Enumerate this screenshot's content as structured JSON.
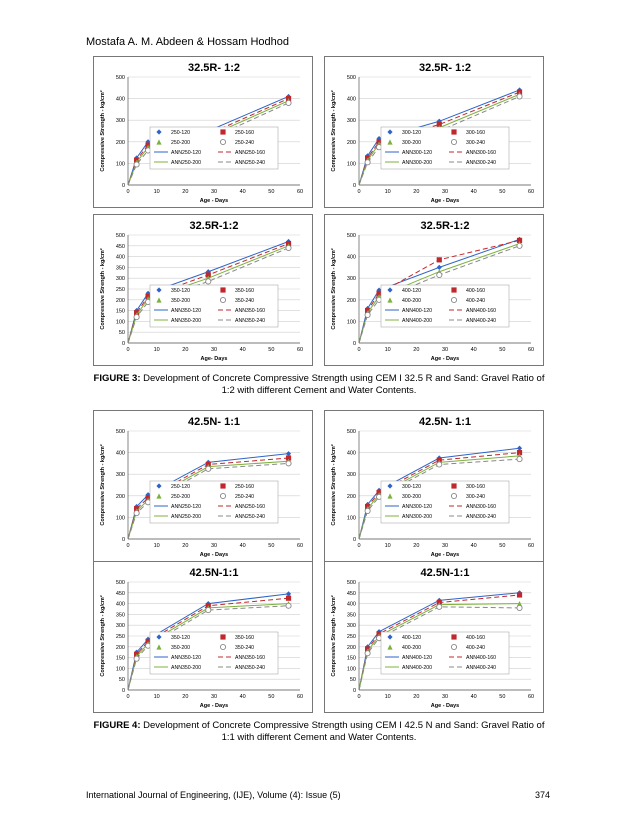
{
  "header": "Mostafa A. M. Abdeen & Hossam Hodhod",
  "caption3": {
    "label": "FIGURE 3:",
    "text": " Development of Concrete Compressive Strength using CEM I 32.5 R and Sand: Gravel Ratio of 1:2 with different Cement and Water Contents."
  },
  "caption4": {
    "label": "FIGURE 4:",
    "text": " Development of Concrete Compressive Strength using CEM I 42.5 N and Sand: Gravel Ratio of 1:1 with different Cement and Water Contents."
  },
  "footer": "International Journal of Engineering, (IJE), Volume (4): Issue (5)",
  "page_number": "374",
  "colors": {
    "blue": "#2e64c8",
    "red": "#c0282d",
    "green": "#7cb23c",
    "gray": "#888888"
  },
  "chart_data": [
    {
      "type": "line",
      "title": "32.5R- 1:2",
      "xlabel": "Age - Days",
      "ylabel": "Compressive Strength - kg/cm²",
      "xlim": [
        0,
        60
      ],
      "ylim": [
        0,
        500
      ],
      "xticks": [
        0,
        10,
        20,
        30,
        40,
        50,
        60
      ],
      "yticks": [
        0,
        100,
        200,
        300,
        400,
        500
      ],
      "legend": [
        "250-120",
        "250-160",
        "250-200",
        "250-240",
        "ANN250-120",
        "ANN250-160",
        "ANN250-200",
        "ANN250-240"
      ],
      "x": [
        0,
        3,
        7,
        28,
        56
      ],
      "series": [
        {
          "name": "250-120",
          "values": [
            0,
            125,
            200,
            250,
            410
          ]
        },
        {
          "name": "250-160",
          "values": [
            0,
            115,
            185,
            235,
            400
          ]
        },
        {
          "name": "250-200",
          "values": [
            0,
            105,
            175,
            225,
            390
          ]
        },
        {
          "name": "250-240",
          "values": [
            0,
            95,
            160,
            210,
            380
          ]
        }
      ]
    },
    {
      "type": "line",
      "title": "32.5R- 1:2",
      "xlabel": "Age - Days",
      "ylabel": "Compressive Strength - kg/cm²",
      "xlim": [
        0,
        60
      ],
      "ylim": [
        0,
        500
      ],
      "xticks": [
        0,
        10,
        20,
        30,
        40,
        50,
        60
      ],
      "yticks": [
        0,
        100,
        200,
        300,
        400,
        500
      ],
      "legend": [
        "300-120",
        "300-160",
        "300-200",
        "300-240",
        "ANN300-120",
        "ANN300-160",
        "ANN300-200",
        "ANN300-240"
      ],
      "x": [
        0,
        3,
        7,
        28,
        56
      ],
      "series": [
        {
          "name": "300-120",
          "values": [
            0,
            135,
            215,
            295,
            440
          ]
        },
        {
          "name": "300-160",
          "values": [
            0,
            125,
            200,
            280,
            430
          ]
        },
        {
          "name": "300-200",
          "values": [
            0,
            115,
            190,
            265,
            420
          ]
        },
        {
          "name": "300-240",
          "values": [
            0,
            105,
            175,
            250,
            410
          ]
        }
      ]
    },
    {
      "type": "line",
      "title": "32.5R-1:2",
      "xlabel": "Age- Days",
      "ylabel": "Compressive Strength - kg/cm²",
      "xlim": [
        0,
        60
      ],
      "ylim": [
        0,
        500
      ],
      "xticks": [
        0,
        10,
        20,
        30,
        40,
        50,
        60
      ],
      "yticks": [
        0,
        50,
        100,
        150,
        200,
        250,
        300,
        350,
        400,
        450,
        500
      ],
      "legend": [
        "350-120",
        "350-160",
        "350-200",
        "350-240",
        "ANN350-120",
        "ANN350-160",
        "ANN350-200",
        "ANN350-240"
      ],
      "x": [
        0,
        3,
        7,
        28,
        56
      ],
      "series": [
        {
          "name": "350-120",
          "values": [
            0,
            150,
            230,
            330,
            470
          ]
        },
        {
          "name": "350-160",
          "values": [
            0,
            140,
            215,
            315,
            460
          ]
        },
        {
          "name": "350-200",
          "values": [
            0,
            130,
            205,
            300,
            450
          ]
        },
        {
          "name": "350-240",
          "values": [
            0,
            120,
            190,
            285,
            440
          ]
        }
      ]
    },
    {
      "type": "line",
      "title": "32.5R-1:2",
      "xlabel": "Age - Days",
      "ylabel": "Compressive Strength - kg/cm²",
      "xlim": [
        0,
        60
      ],
      "ylim": [
        0,
        500
      ],
      "xticks": [
        0,
        10,
        20,
        30,
        40,
        50,
        60
      ],
      "yticks": [
        0,
        100,
        200,
        300,
        400,
        500
      ],
      "legend": [
        "400-120",
        "400-160",
        "400-200",
        "400-240",
        "ANN400-120",
        "ANN400-160",
        "ANN400-200",
        "ANN400-240"
      ],
      "x": [
        0,
        3,
        7,
        28,
        56
      ],
      "series": [
        {
          "name": "400-120",
          "values": [
            0,
            160,
            245,
            350,
            480
          ]
        },
        {
          "name": "400-160",
          "values": [
            0,
            150,
            230,
            385,
            475
          ]
        },
        {
          "name": "400-200",
          "values": [
            0,
            140,
            215,
            330,
            460
          ]
        },
        {
          "name": "400-240",
          "values": [
            0,
            130,
            200,
            315,
            450
          ]
        }
      ]
    },
    {
      "type": "line",
      "title": "42.5N- 1:1",
      "xlabel": "Age - Days",
      "ylabel": "Compressive Strength - kg/cm²",
      "xlim": [
        0,
        60
      ],
      "ylim": [
        0,
        500
      ],
      "xticks": [
        0,
        10,
        20,
        30,
        40,
        50,
        60
      ],
      "yticks": [
        0,
        100,
        200,
        300,
        400,
        500
      ],
      "legend": [
        "250-120",
        "250-160",
        "250-200",
        "250-240",
        "ANN250-120",
        "ANN250-160",
        "ANN250-200",
        "ANN250-240"
      ],
      "x": [
        0,
        3,
        7,
        28,
        56
      ],
      "series": [
        {
          "name": "250-120",
          "values": [
            0,
            150,
            205,
            355,
            395
          ]
        },
        {
          "name": "250-160",
          "values": [
            0,
            140,
            190,
            345,
            375
          ]
        },
        {
          "name": "250-200",
          "values": [
            0,
            130,
            180,
            335,
            360
          ]
        },
        {
          "name": "250-240",
          "values": [
            0,
            120,
            170,
            325,
            350
          ]
        }
      ]
    },
    {
      "type": "line",
      "title": "42.5N- 1:1",
      "xlabel": "Age - Days",
      "ylabel": "Compressive Strength - kg/cm²",
      "xlim": [
        0,
        60
      ],
      "ylim": [
        0,
        500
      ],
      "xticks": [
        0,
        10,
        20,
        30,
        40,
        50,
        60
      ],
      "yticks": [
        0,
        100,
        200,
        300,
        400,
        500
      ],
      "legend": [
        "300-120",
        "300-160",
        "300-200",
        "300-240",
        "ANN300-120",
        "ANN300-160",
        "ANN300-200",
        "ANN300-240"
      ],
      "x": [
        0,
        3,
        7,
        28,
        56
      ],
      "series": [
        {
          "name": "300-120",
          "values": [
            0,
            160,
            225,
            375,
            420
          ]
        },
        {
          "name": "300-160",
          "values": [
            0,
            150,
            215,
            365,
            400
          ]
        },
        {
          "name": "300-200",
          "values": [
            0,
            140,
            205,
            355,
            385
          ]
        },
        {
          "name": "300-240",
          "values": [
            0,
            130,
            195,
            345,
            370
          ]
        }
      ]
    },
    {
      "type": "line",
      "title": "42.5N-1:1",
      "xlabel": "Age - Days",
      "ylabel": "Compressive Strength - kg/cm²",
      "xlim": [
        0,
        60
      ],
      "ylim": [
        0,
        500
      ],
      "xticks": [
        0,
        10,
        20,
        30,
        40,
        50,
        60
      ],
      "yticks": [
        0,
        50,
        100,
        150,
        200,
        250,
        300,
        350,
        400,
        450,
        500
      ],
      "legend": [
        "350-120",
        "350-160",
        "350-200",
        "350-240",
        "ANN350-120",
        "ANN350-160",
        "ANN350-200",
        "ANN350-240"
      ],
      "x": [
        0,
        3,
        7,
        28,
        56
      ],
      "series": [
        {
          "name": "350-120",
          "values": [
            0,
            175,
            235,
            400,
            445
          ]
        },
        {
          "name": "350-160",
          "values": [
            0,
            165,
            225,
            390,
            425
          ]
        },
        {
          "name": "350-200",
          "values": [
            0,
            155,
            215,
            380,
            400
          ]
        },
        {
          "name": "350-240",
          "values": [
            0,
            145,
            205,
            370,
            390
          ]
        }
      ]
    },
    {
      "type": "line",
      "title": "42.5N-1:1",
      "xlabel": "Age - Days",
      "ylabel": "Compressive Strength - kg/cm²",
      "xlim": [
        0,
        60
      ],
      "ylim": [
        0,
        500
      ],
      "xticks": [
        0,
        10,
        20,
        30,
        40,
        50,
        60
      ],
      "yticks": [
        0,
        50,
        100,
        150,
        200,
        250,
        300,
        350,
        400,
        450,
        500
      ],
      "legend": [
        "400-120",
        "400-160",
        "400-200",
        "400-240",
        "ANN400-120",
        "ANN400-160",
        "ANN400-200",
        "ANN400-240"
      ],
      "x": [
        0,
        3,
        7,
        28,
        56
      ],
      "series": [
        {
          "name": "400-120",
          "values": [
            0,
            200,
            270,
            415,
            450
          ]
        },
        {
          "name": "400-160",
          "values": [
            0,
            190,
            260,
            405,
            440
          ]
        },
        {
          "name": "400-200",
          "values": [
            0,
            180,
            250,
            395,
            400
          ]
        },
        {
          "name": "400-240",
          "values": [
            0,
            170,
            240,
            385,
            380
          ]
        }
      ]
    }
  ]
}
